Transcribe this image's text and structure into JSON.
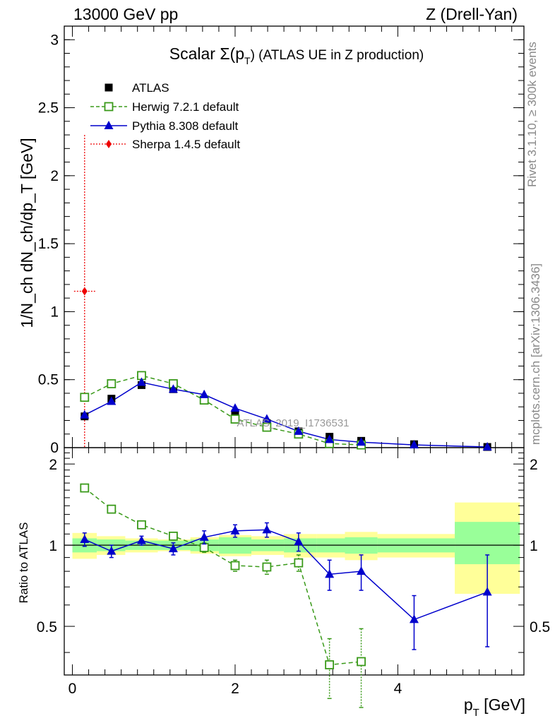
{
  "header": {
    "left_label": "13000 GeV pp",
    "right_label": "Z (Drell-Yan)"
  },
  "side_labels": {
    "rivet": "Rivet 3.1.10, ≥ 300k events",
    "mcplots": "mcplots.cern.ch [arXiv:1306.3436]"
  },
  "watermark": "ATLAS_2019_I1736531",
  "chart_data": {
    "type": "line",
    "title": "Scalar Σ(p_T) (ATLAS UE in Z production)",
    "title_main": "Scalar Σ(p",
    "title_sub": "T",
    "title_rest": ") (ATLAS UE in Z production)",
    "xlabel": "p_T [GeV]",
    "xlabel_main": "p",
    "xlabel_sub": "T",
    "xlabel_rest": " [GeV]",
    "ylabel": "1/N_ch dN_ch/dp_T [GeV]",
    "ratio_ylabel": "Ratio to ATLAS",
    "xlim": [
      -0.1,
      5.55
    ],
    "ylim": [
      0,
      3.1
    ],
    "ratio_ylim": [
      0.33,
      2.3
    ],
    "x_ticks": [
      "0",
      "2",
      "4"
    ],
    "y_ticks": [
      "0",
      "0.5",
      "1",
      "1.5",
      "2",
      "2.5",
      "3"
    ],
    "ratio_ticks": [
      "0.5",
      "1",
      "2"
    ],
    "legend": [
      {
        "name": "ATLAS",
        "color": "#000000",
        "marker": "filled-square"
      },
      {
        "name": "Herwig 7.2.1 default",
        "color": "#3a9a1a",
        "marker": "open-square"
      },
      {
        "name": "Pythia 8.308 default",
        "color": "#0000cc",
        "marker": "filled-triangle"
      },
      {
        "name": "Sherpa 1.4.5 default",
        "color": "#ee0000",
        "marker": "filled-diamond"
      }
    ],
    "bin_edges": [
      0.0,
      0.3,
      0.65,
      1.05,
      1.45,
      1.8,
      2.2,
      2.6,
      3.0,
      3.35,
      3.75,
      4.7,
      5.5
    ],
    "atlas": {
      "x": [
        0.15,
        0.48,
        0.85,
        1.24,
        1.62,
        2.0,
        2.39,
        2.78,
        3.16,
        3.55,
        4.2,
        5.1
      ],
      "y": [
        0.23,
        0.36,
        0.46,
        0.43,
        0.35,
        0.25,
        0.18,
        0.12,
        0.08,
        0.05,
        0.025,
        0.005
      ]
    },
    "herwig": {
      "x": [
        0.15,
        0.48,
        0.85,
        1.24,
        1.62,
        2.0,
        2.39,
        2.78,
        3.16,
        3.55
      ],
      "y": [
        0.37,
        0.47,
        0.53,
        0.47,
        0.35,
        0.21,
        0.15,
        0.1,
        0.03,
        0.02
      ],
      "ratio": [
        1.63,
        1.36,
        1.19,
        1.08,
        0.98,
        0.84,
        0.83,
        0.86,
        0.36,
        0.37
      ],
      "ratio_err": [
        0.05,
        0.04,
        0.03,
        0.03,
        0.04,
        0.04,
        0.05,
        0.06,
        0.09,
        0.12
      ]
    },
    "pythia": {
      "x": [
        0.15,
        0.48,
        0.85,
        1.24,
        1.62,
        2.0,
        2.39,
        2.78,
        3.16,
        3.55,
        4.2,
        5.1
      ],
      "y": [
        0.24,
        0.34,
        0.48,
        0.43,
        0.39,
        0.29,
        0.21,
        0.12,
        0.06,
        0.04,
        0.02,
        0.005
      ],
      "ratio": [
        1.05,
        0.95,
        1.04,
        0.97,
        1.07,
        1.13,
        1.14,
        1.03,
        0.78,
        0.8,
        0.53,
        0.67
      ],
      "ratio_err": [
        0.06,
        0.05,
        0.04,
        0.05,
        0.06,
        0.06,
        0.07,
        0.08,
        0.1,
        0.12,
        0.12,
        0.25
      ]
    },
    "sherpa": {
      "x": [
        0.15
      ],
      "y": [
        1.15
      ],
      "y_err": [
        1.15
      ],
      "x_err": [
        0.13
      ]
    },
    "ratio_bands": {
      "green": [
        [
          0.94,
          1.06
        ],
        [
          0.95,
          1.05
        ],
        [
          0.96,
          1.04
        ],
        [
          0.96,
          1.04
        ],
        [
          0.95,
          1.05
        ],
        [
          0.93,
          1.07
        ],
        [
          0.95,
          1.05
        ],
        [
          0.94,
          1.06
        ],
        [
          0.94,
          1.06
        ],
        [
          0.93,
          1.07
        ],
        [
          0.94,
          1.06
        ],
        [
          0.85,
          1.22
        ]
      ],
      "yellow": [
        [
          0.89,
          1.11
        ],
        [
          0.92,
          1.08
        ],
        [
          0.94,
          1.06
        ],
        [
          0.95,
          1.05
        ],
        [
          0.93,
          1.07
        ],
        [
          0.91,
          1.09
        ],
        [
          0.92,
          1.08
        ],
        [
          0.9,
          1.1
        ],
        [
          0.9,
          1.1
        ],
        [
          0.88,
          1.12
        ],
        [
          0.9,
          1.1
        ],
        [
          0.66,
          1.44
        ]
      ]
    }
  }
}
